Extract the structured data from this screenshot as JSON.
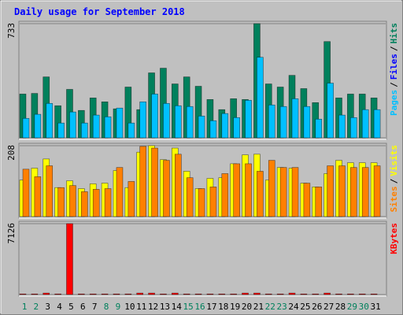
{
  "chart_data": [
    {
      "type": "bar",
      "title": "Daily usage for September 2018",
      "legend_separator": "/",
      "ylim": [
        0,
        733
      ],
      "yticks": [
        733
      ],
      "series": [
        {
          "name": "Hits",
          "color": "#00805c",
          "values": [
            281,
            285,
            391,
            206,
            311,
            176,
            256,
            231,
            186,
            326,
            181,
            417,
            447,
            346,
            391,
            331,
            246,
            181,
            251,
            246,
            733,
            346,
            326,
            401,
            316,
            226,
            618,
            256,
            281,
            281,
            256
          ]
        },
        {
          "name": "Files",
          "color": "#0000ff",
          "values": [
            0,
            0,
            0,
            0,
            0,
            0,
            0,
            0,
            0,
            0,
            0,
            0,
            0,
            0,
            0,
            0,
            0,
            0,
            0,
            0,
            0,
            0,
            0,
            0,
            0,
            0,
            0,
            0,
            0,
            0,
            0
          ]
        },
        {
          "name": "Pages",
          "color": "#00c0ff",
          "values": [
            125,
            151,
            221,
            95,
            166,
            95,
            146,
            135,
            191,
            95,
            231,
            281,
            221,
            206,
            201,
            140,
            110,
            156,
            130,
            241,
            517,
            211,
            201,
            251,
            201,
            120,
            351,
            146,
            130,
            181,
            181
          ]
        }
      ]
    },
    {
      "type": "bar",
      "ylim": [
        0,
        208
      ],
      "yticks": [
        208
      ],
      "series": [
        {
          "name": "Visits",
          "color": "#ffff00",
          "values": [
            107,
            142,
            169,
            85,
            105,
            82,
            96,
            98,
            135,
            85,
            189,
            208,
            167,
            201,
            133,
            82,
            112,
            114,
            155,
            181,
            183,
            107,
            144,
            142,
            98,
            87,
            126,
            165,
            158,
            158,
            158
          ]
        },
        {
          "name": "Sites",
          "color": "#ff8000",
          "values": [
            139,
            117,
            149,
            85,
            91,
            73,
            80,
            82,
            144,
            103,
            206,
            201,
            165,
            183,
            114,
            82,
            87,
            126,
            155,
            155,
            133,
            165,
            144,
            144,
            98,
            87,
            149,
            149,
            144,
            144,
            149
          ]
        }
      ]
    },
    {
      "type": "bar",
      "ylim": [
        0,
        7126
      ],
      "yticks": [
        7126
      ],
      "categories": [
        "1",
        "2",
        "3",
        "4",
        "5",
        "6",
        "7",
        "8",
        "9",
        "10",
        "11",
        "12",
        "13",
        "14",
        "15",
        "16",
        "17",
        "18",
        "19",
        "20",
        "21",
        "22",
        "23",
        "24",
        "25",
        "26",
        "27",
        "28",
        "29",
        "30",
        "31"
      ],
      "label_colors": [
        "#00805c",
        "#00805c",
        "#000000",
        "#000000",
        "#000000",
        "#000000",
        "#000000",
        "#00805c",
        "#00805c",
        "#000000",
        "#000000",
        "#000000",
        "#000000",
        "#000000",
        "#00805c",
        "#00805c",
        "#000000",
        "#000000",
        "#000000",
        "#000000",
        "#000000",
        "#00805c",
        "#00805c",
        "#000000",
        "#000000",
        "#000000",
        "#000000",
        "#000000",
        "#00805c",
        "#00805c",
        "#000000"
      ],
      "series": [
        {
          "name": "KBytes",
          "color": "#ff0000",
          "values": [
            60,
            60,
            150,
            60,
            7126,
            60,
            60,
            60,
            60,
            60,
            150,
            150,
            60,
            150,
            60,
            60,
            60,
            60,
            60,
            150,
            150,
            60,
            60,
            150,
            60,
            60,
            150,
            60,
            60,
            60,
            60
          ]
        }
      ]
    }
  ]
}
